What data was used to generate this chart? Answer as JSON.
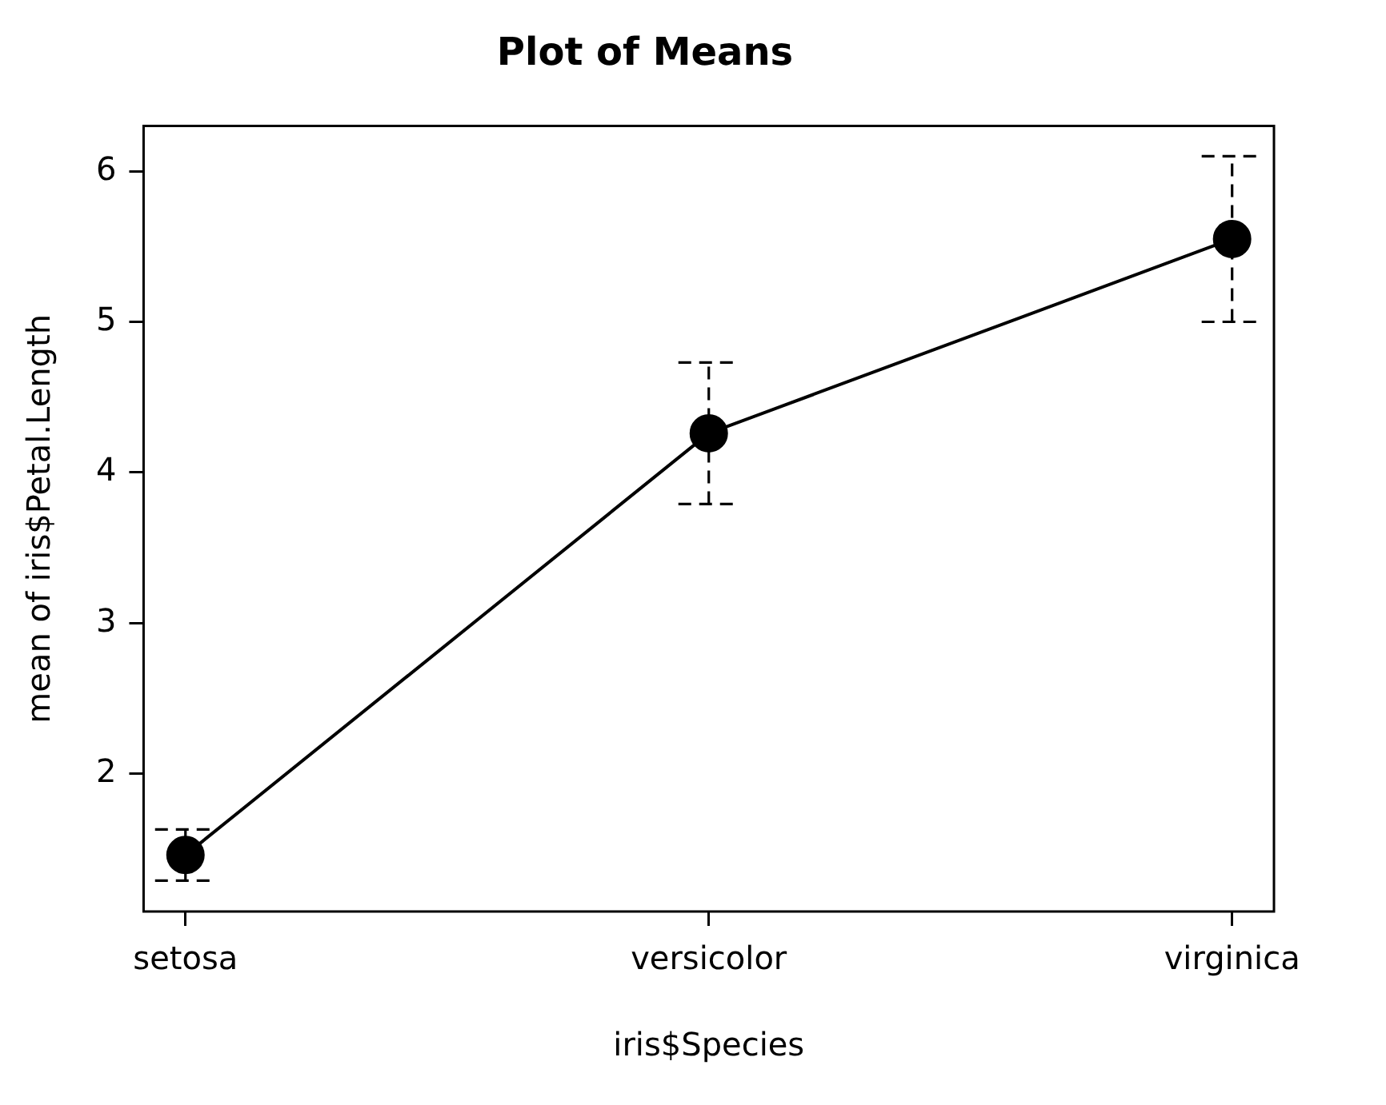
{
  "chart_data": {
    "type": "line",
    "title": "Plot of Means",
    "xlabel": "iris$Species",
    "ylabel": "mean of iris$Petal.Length",
    "categories": [
      "setosa",
      "versicolor",
      "virginica"
    ],
    "series": [
      {
        "color": "#000000",
        "values": [
          1.46,
          4.26,
          5.55
        ],
        "errors": [
          [
            1.29,
            1.63
          ],
          [
            3.79,
            4.73
          ],
          [
            5.0,
            6.1
          ]
        ]
      }
    ],
    "ylim": [
      1.085,
      6.3
    ],
    "yticks": [
      2,
      3,
      4,
      5,
      6
    ],
    "grid": false,
    "legend": false,
    "marker": "circle",
    "line_style": "solid"
  }
}
